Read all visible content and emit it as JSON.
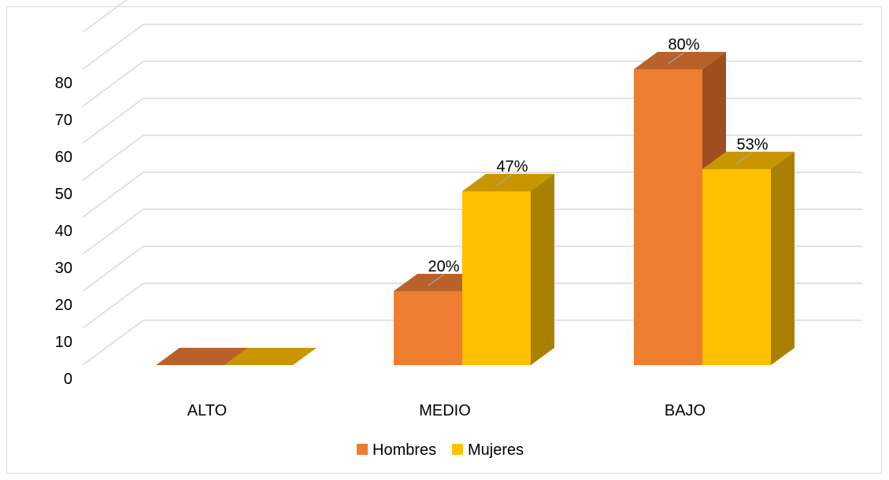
{
  "chart_data": {
    "type": "bar",
    "categories": [
      "ALTO",
      "MEDIO",
      "BAJO"
    ],
    "series": [
      {
        "name": "Hombres",
        "values": [
          0,
          20,
          80
        ],
        "labels": [
          "",
          "20%",
          "80%"
        ],
        "color": "#ED7D31",
        "top_color": "#B9612A",
        "side_color": "#9E4F1F"
      },
      {
        "name": "Mujeres",
        "values": [
          0,
          47,
          53
        ],
        "labels": [
          "",
          "47%",
          "53%"
        ],
        "color": "#FFC000",
        "top_color": "#C89600",
        "side_color": "#AA8000"
      }
    ],
    "y_ticks": [
      "0",
      "10",
      "20",
      "30",
      "40",
      "50",
      "60",
      "70",
      "80"
    ],
    "ylim": [
      0,
      90
    ],
    "grid": true,
    "legend_position": "bottom",
    "three_d": true
  }
}
